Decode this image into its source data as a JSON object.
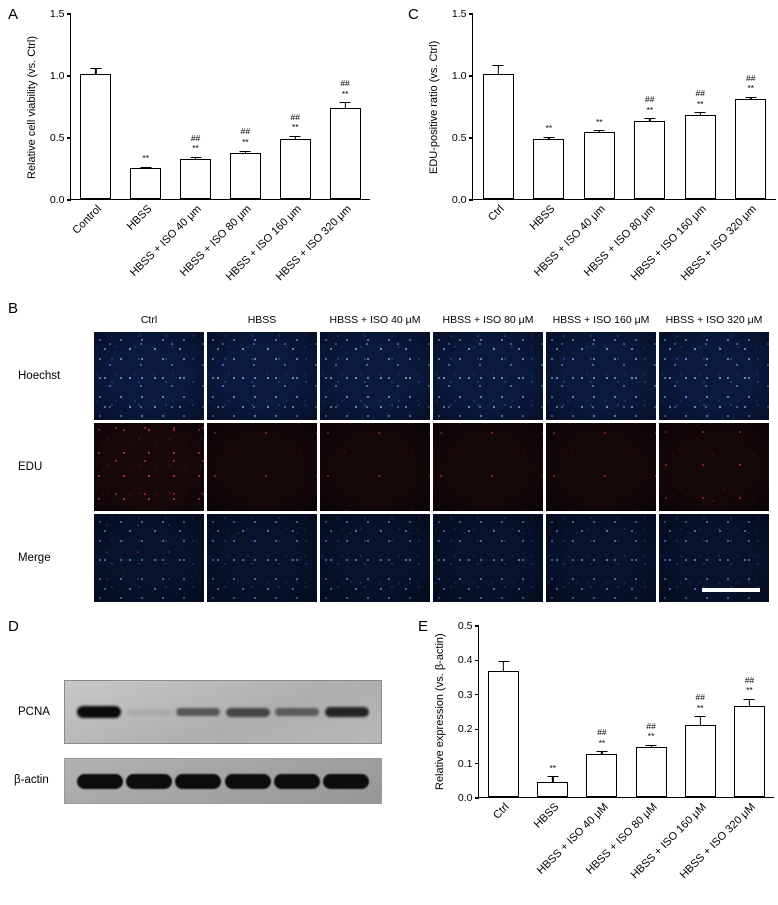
{
  "panels": {
    "A": {
      "letter": "A"
    },
    "B": {
      "letter": "B",
      "columns": [
        "Ctrl",
        "HBSS",
        "HBSS + ISO 40 μM",
        "HBSS + ISO 80 μM",
        "HBSS + ISO 160 μM",
        "HBSS + ISO 320 μM"
      ],
      "rows": [
        "Hoechst",
        "EDU",
        "Merge"
      ]
    },
    "C": {
      "letter": "C"
    },
    "D": {
      "letter": "D",
      "blots": [
        "PCNA",
        "β-actin"
      ]
    },
    "E": {
      "letter": "E"
    }
  },
  "chart_data": [
    {
      "panel": "A",
      "type": "bar",
      "title": "",
      "ylabel": "Relative cell viability (vs. Ctrl)",
      "xlabel": "",
      "categories": [
        "Control",
        "HBSS",
        "HBSS + ISO 40 μm",
        "HBSS + ISO 80 μm",
        "HBSS + ISO 160 μm",
        "HBSS + ISO 320 μm"
      ],
      "values": [
        1.01,
        0.25,
        0.32,
        0.37,
        0.48,
        0.73
      ],
      "errors": [
        0.05,
        0.012,
        0.018,
        0.02,
        0.03,
        0.05
      ],
      "annotations": [
        [],
        [
          "**"
        ],
        [
          "##",
          "**"
        ],
        [
          "##",
          "**"
        ],
        [
          "##",
          "**"
        ],
        [
          "##",
          "**"
        ]
      ],
      "ylim": [
        0,
        1.5
      ],
      "yticks": [
        0.0,
        0.5,
        1.0,
        1.5
      ],
      "grid": false,
      "bar_fill": "#ffffff",
      "bar_border": "#000000"
    },
    {
      "panel": "C",
      "type": "bar",
      "title": "",
      "ylabel": "EDU-positive ratio (vs. Ctrl)",
      "xlabel": "",
      "categories": [
        "Ctrl",
        "HBSS",
        "HBSS + ISO 40 μm",
        "HBSS + ISO 80 μm",
        "HBSS + ISO 160 μm",
        "HBSS + ISO 320 μm"
      ],
      "values": [
        1.01,
        0.48,
        0.54,
        0.63,
        0.68,
        0.81
      ],
      "errors": [
        0.07,
        0.02,
        0.015,
        0.02,
        0.02,
        0.012
      ],
      "annotations": [
        [],
        [
          "**"
        ],
        [
          "**"
        ],
        [
          "##",
          "**"
        ],
        [
          "##",
          "**"
        ],
        [
          "##",
          "**"
        ]
      ],
      "ylim": [
        0,
        1.5
      ],
      "yticks": [
        0.0,
        0.5,
        1.0,
        1.5
      ],
      "grid": false,
      "bar_fill": "#ffffff",
      "bar_border": "#000000"
    },
    {
      "panel": "E",
      "type": "bar",
      "title": "",
      "ylabel": "Relative expression (vs. β-actin)",
      "xlabel": "",
      "categories": [
        "Ctrl",
        "HBSS",
        "HBSS + ISO 40 μM",
        "HBSS + ISO 80 μM",
        "HBSS + ISO 160 μM",
        "HBSS + ISO 320 μM"
      ],
      "values": [
        0.365,
        0.045,
        0.125,
        0.145,
        0.21,
        0.265
      ],
      "errors": [
        0.03,
        0.015,
        0.008,
        0.006,
        0.025,
        0.02
      ],
      "annotations": [
        [],
        [
          "**"
        ],
        [
          "##",
          "**"
        ],
        [
          "##",
          "**"
        ],
        [
          "##",
          "**"
        ],
        [
          "##",
          "**"
        ]
      ],
      "ylim": [
        0,
        0.5
      ],
      "yticks": [
        0.0,
        0.1,
        0.2,
        0.3,
        0.4,
        0.5
      ],
      "grid": false,
      "bar_fill": "#ffffff",
      "bar_border": "#000000"
    }
  ]
}
